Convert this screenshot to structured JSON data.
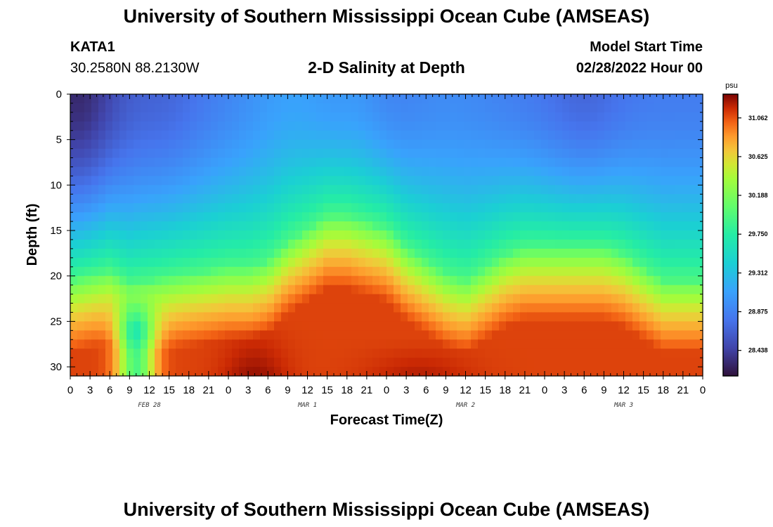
{
  "header": {
    "title": "University of Southern Mississippi Ocean Cube (AMSEAS)",
    "station": "KATA1",
    "coordinates": "30.2580N  88.2130W",
    "chart_title": "2-D Salinity at Depth",
    "model_start_label": "Model Start Time",
    "model_start_value": "02/28/2022 Hour 00"
  },
  "footer": {
    "title": "University of Southern Mississippi Ocean Cube (AMSEAS)"
  },
  "chart_data": {
    "type": "heatmap",
    "title": "2-D Salinity at Depth",
    "xlabel": "Forecast Time(Z)",
    "ylabel": "Depth (ft)",
    "x_hours_range": [
      0,
      96
    ],
    "ylim": [
      0,
      31
    ],
    "y_inverted": true,
    "x_tick_labels": [
      "0",
      "3",
      "6",
      "9",
      "12",
      "15",
      "18",
      "21",
      "0",
      "3",
      "6",
      "9",
      "12",
      "15",
      "18",
      "21",
      "0",
      "3",
      "6",
      "9",
      "12",
      "15",
      "18",
      "21",
      "0",
      "3",
      "6",
      "9",
      "12",
      "15",
      "18",
      "21",
      "0"
    ],
    "y_ticks": [
      0,
      5,
      10,
      15,
      20,
      25,
      30
    ],
    "day_labels": [
      {
        "label": "FEB 28",
        "hour": 12
      },
      {
        "label": "MAR 1",
        "hour": 36
      },
      {
        "label": "MAR 2",
        "hour": 60
      },
      {
        "label": "MAR 3",
        "hour": 84
      }
    ],
    "colorbar": {
      "unit": "psu",
      "range": [
        28.15,
        31.33
      ],
      "ticks": [
        31.062,
        30.625,
        30.188,
        29.75,
        29.312,
        28.875,
        28.438
      ]
    },
    "grid": false,
    "legend": "colorbar right"
  }
}
